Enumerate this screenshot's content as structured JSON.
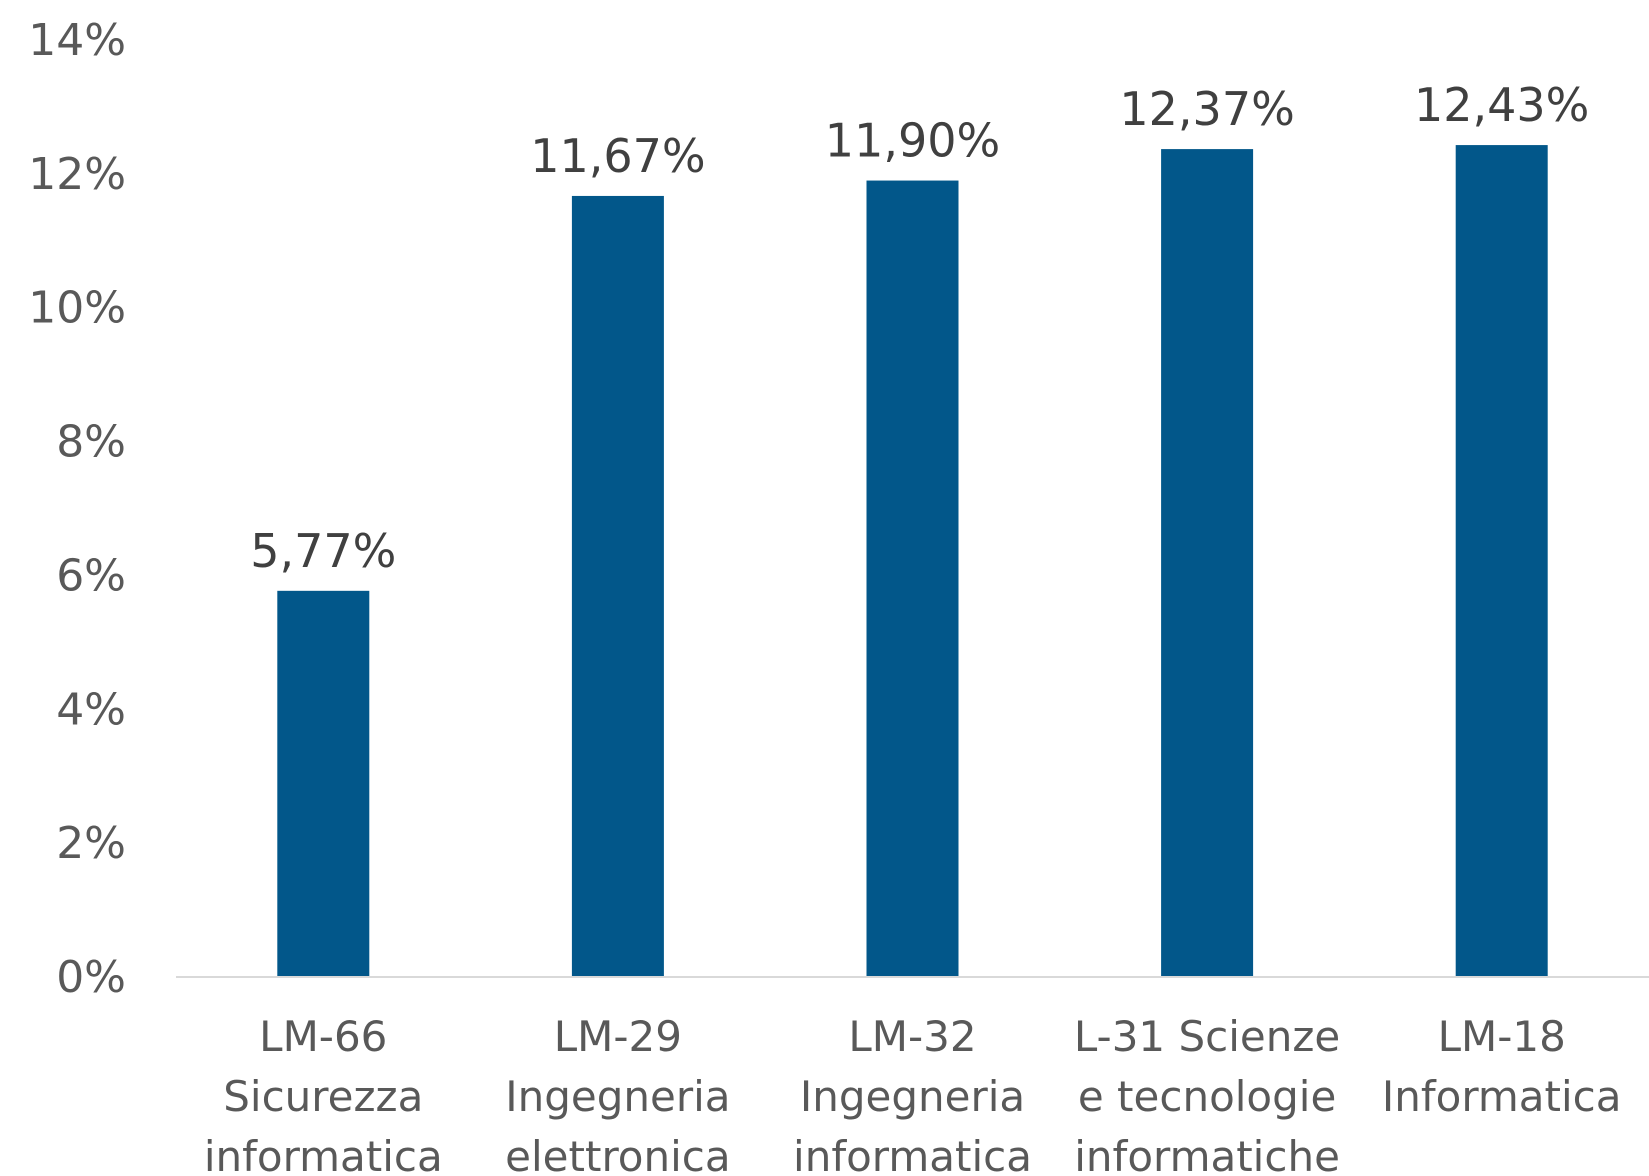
{
  "chart_data": {
    "type": "bar",
    "title": "",
    "xlabel": "",
    "ylabel": "",
    "categories": [
      [
        "LM-66",
        "Sicurezza",
        "informatica"
      ],
      [
        "LM-29",
        "Ingegneria",
        "elettronica"
      ],
      [
        "LM-32",
        "Ingegneria",
        "informatica"
      ],
      [
        "L-31 Scienze",
        "e tecnologie",
        "informatiche"
      ],
      [
        "LM-18",
        "Informatica"
      ]
    ],
    "values": [
      5.77,
      11.67,
      11.9,
      12.37,
      12.43
    ],
    "data_labels": [
      "5,77%",
      "11,67%",
      "11,90%",
      "12,37%",
      "12,43%"
    ],
    "ylim": [
      0,
      14
    ],
    "yticks": [
      0,
      2,
      4,
      6,
      8,
      10,
      12,
      14
    ],
    "ytick_labels": [
      "0%",
      "2%",
      "4%",
      "6%",
      "8%",
      "10%",
      "12%",
      "14%"
    ],
    "grid": false,
    "legend": "none",
    "colors": {
      "bar": "#02578A",
      "axis": "#D9D9D9",
      "text": "#595959",
      "data_label": "#404040"
    }
  }
}
